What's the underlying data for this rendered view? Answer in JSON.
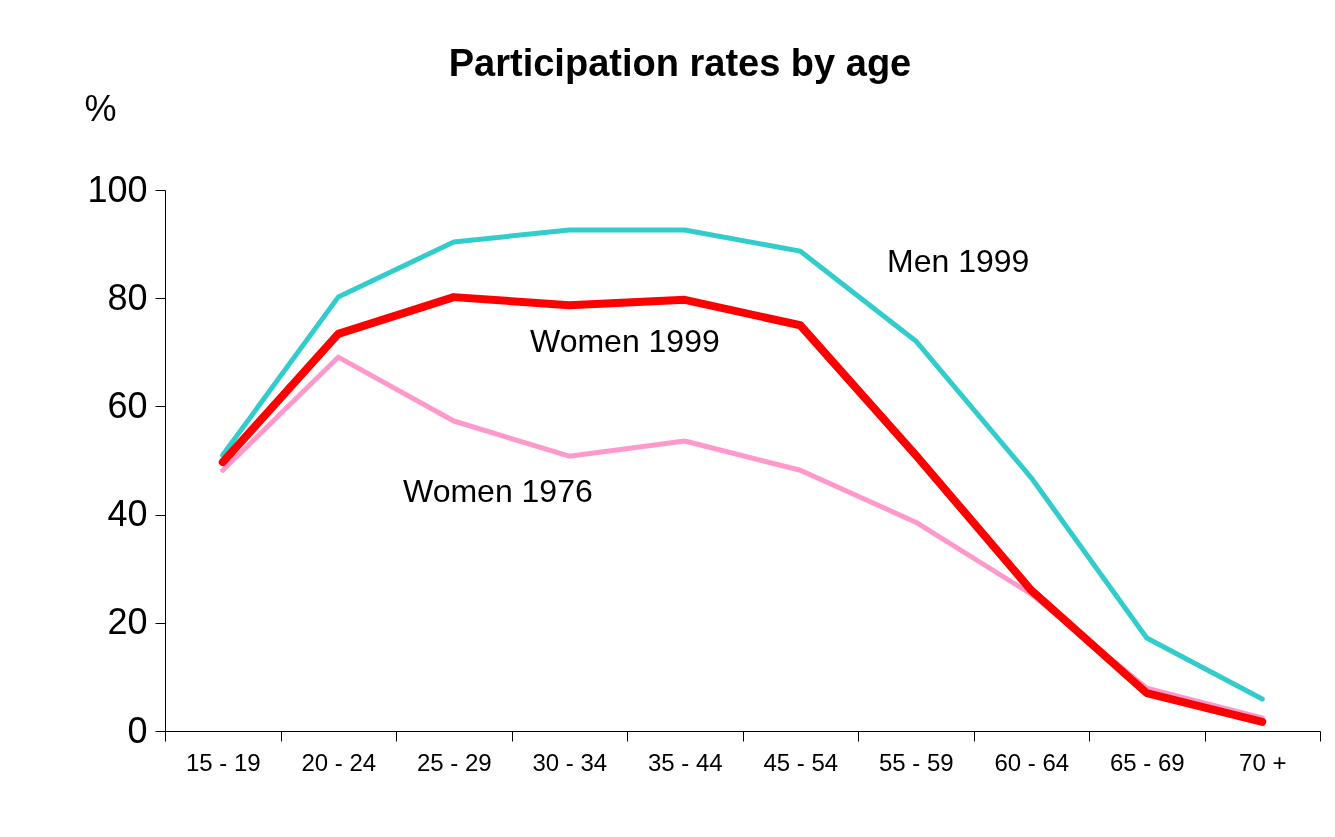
{
  "chart_data": {
    "type": "line",
    "title": "Participation rates by age",
    "ylabel": "%",
    "categories": [
      "15 - 19",
      "20 - 24",
      "25 - 29",
      "30 - 34",
      "35 - 44",
      "45 - 54",
      "55 - 59",
      "60 - 64",
      "65 - 69",
      "70 +"
    ],
    "series": [
      {
        "name": "Men 1999",
        "color": "#33cccc",
        "values": [
          51,
          80.2,
          90.4,
          92.6,
          92.6,
          88.7,
          72.1,
          46.8,
          17.2,
          5.9
        ]
      },
      {
        "name": "Women 1999",
        "color": "#ff0000",
        "values": [
          49.7,
          73.4,
          80.2,
          78.7,
          79.7,
          75,
          51,
          26,
          7,
          1.7
        ]
      },
      {
        "name": "Women 1976",
        "color": "#ff99cc",
        "values": [
          48.2,
          69.1,
          57.3,
          50.8,
          53.6,
          48.2,
          38.6,
          25.3,
          7.9,
          2.4
        ]
      }
    ],
    "ylim": [
      0,
      100
    ],
    "yticks": [
      0,
      20,
      40,
      60,
      80,
      100
    ],
    "grid": false
  }
}
